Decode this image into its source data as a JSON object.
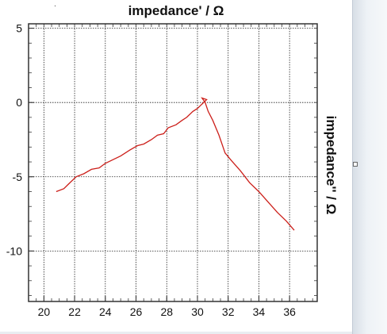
{
  "chart_data": {
    "type": "line",
    "title": "impedance' / Ω",
    "ylabel": "impedance'' / Ω",
    "xlabel": "",
    "xlim": [
      19,
      37.8
    ],
    "ylim": [
      -13.4,
      5.3
    ],
    "xticks": [
      20,
      22,
      24,
      26,
      28,
      30,
      32,
      34,
      36
    ],
    "yticks": [
      5,
      0,
      -5,
      -10
    ],
    "xtick_labels": [
      "20",
      "22",
      "24",
      "26",
      "28",
      "30",
      "32",
      "34",
      "36"
    ],
    "ytick_labels": [
      "5",
      "0",
      "-5",
      "-10"
    ],
    "grid": true,
    "line_color": "#cc1f1a",
    "series": [
      {
        "x": [
          20.8,
          21.3,
          21.6,
          22.1,
          22.6,
          23.1,
          23.6,
          24.0,
          24.6,
          25.0,
          25.6,
          26.1,
          26.5,
          27.0,
          27.4,
          27.8,
          28.1,
          28.6,
          29.0,
          29.3,
          29.7,
          30.0,
          30.3,
          30.6,
          30.3,
          30.5,
          30.7,
          31.0,
          31.4,
          31.8,
          32.2,
          32.8,
          33.4,
          34.0,
          34.6,
          35.2,
          35.8,
          36.3
        ],
        "y": [
          -6.0,
          -5.8,
          -5.5,
          -5.0,
          -4.8,
          -4.5,
          -4.4,
          -4.1,
          -3.8,
          -3.6,
          -3.2,
          -2.9,
          -2.8,
          -2.5,
          -2.2,
          -2.1,
          -1.7,
          -1.5,
          -1.2,
          -1.0,
          -0.6,
          -0.4,
          -0.1,
          0.2,
          0.3,
          0.0,
          -0.6,
          -1.2,
          -2.2,
          -3.4,
          -3.9,
          -4.6,
          -5.4,
          -6.0,
          -6.7,
          -7.4,
          -8.0,
          -8.6
        ]
      }
    ]
  }
}
